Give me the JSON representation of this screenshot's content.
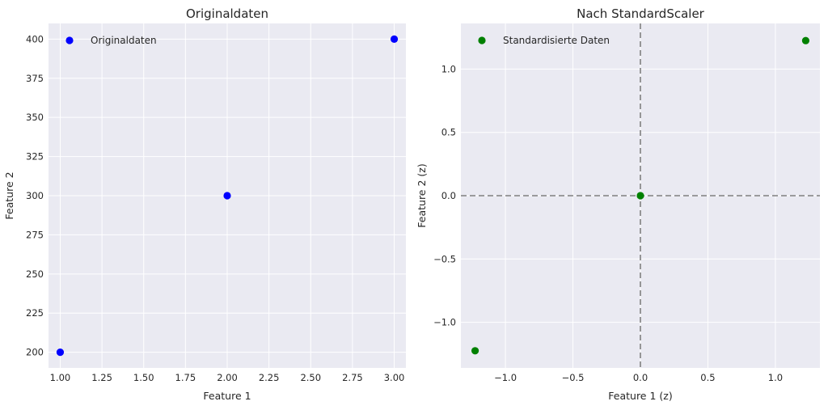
{
  "chart_data": [
    {
      "type": "scatter",
      "title": "Originaldaten",
      "xlabel": "Feature 1",
      "ylabel": "Feature 2",
      "xlim": [
        0.93,
        3.07
      ],
      "ylim": [
        190,
        410
      ],
      "xticks": [
        1.0,
        1.25,
        1.5,
        1.75,
        2.0,
        2.25,
        2.5,
        2.75,
        3.0
      ],
      "xtick_labels": [
        "1.00",
        "1.25",
        "1.50",
        "1.75",
        "2.00",
        "2.25",
        "2.50",
        "2.75",
        "3.00"
      ],
      "yticks": [
        200,
        225,
        250,
        275,
        300,
        325,
        350,
        375,
        400
      ],
      "ytick_labels": [
        "200",
        "225",
        "250",
        "275",
        "300",
        "325",
        "350",
        "375",
        "400"
      ],
      "grid": true,
      "legend_position": "upper-left",
      "series": [
        {
          "name": "Originaldaten",
          "color": "#0000ff",
          "x": [
            1,
            2,
            3
          ],
          "y": [
            200,
            300,
            400
          ]
        }
      ]
    },
    {
      "type": "scatter",
      "title": "Nach StandardScaler",
      "xlabel": "Feature 1 (z)",
      "ylabel": "Feature 2 (z)",
      "xlim": [
        -1.33,
        1.33
      ],
      "ylim": [
        -1.36,
        1.36
      ],
      "xticks": [
        -1.0,
        -0.5,
        0.0,
        0.5,
        1.0
      ],
      "xtick_labels": [
        "−1.0",
        "−0.5",
        "0.0",
        "0.5",
        "1.0"
      ],
      "yticks": [
        -1.0,
        -0.5,
        0.0,
        0.5,
        1.0
      ],
      "ytick_labels": [
        "−1.0",
        "−0.5",
        "0.0",
        "0.5",
        "1.0"
      ],
      "grid": true,
      "reference_lines": {
        "x": 0,
        "y": 0,
        "style": "dashed",
        "color": "#808080"
      },
      "legend_position": "upper-left",
      "series": [
        {
          "name": "Standardisierte Daten",
          "color": "#008000",
          "x": [
            -1.2247,
            0.0,
            1.2247
          ],
          "y": [
            -1.2247,
            0.0,
            1.2247
          ]
        }
      ]
    }
  ]
}
